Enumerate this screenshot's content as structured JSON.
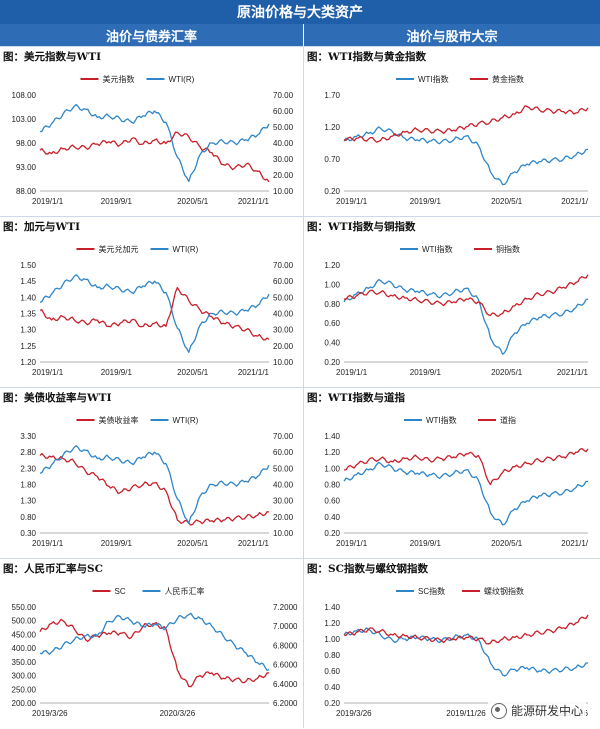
{
  "header": {
    "title": "原油价格与大类资产",
    "left_section": "油价与债券汇率",
    "right_section": "油价与股市大宗"
  },
  "watermark": "能源研发中心",
  "colors": {
    "red": "#c8202a",
    "blue": "#2e86c8",
    "banner": "#1f5ea8"
  },
  "chart_data": [
    {
      "type": "line",
      "title": "图：美元指数与WTI",
      "x_ticks": [
        "2019/1/1",
        "2019/9/1",
        "2020/5/1",
        "2021/1/1"
      ],
      "left_axis": {
        "ticks": [
          "108.00",
          "103.00",
          "98.00",
          "93.00",
          "88.00"
        ],
        "ylim": [
          88,
          108
        ]
      },
      "right_axis": {
        "ticks": [
          "70.00",
          "60.00",
          "50.00",
          "40.00",
          "30.00",
          "20.00",
          "10.00"
        ],
        "ylim": [
          10,
          70
        ]
      },
      "series": [
        {
          "name": "美元指数",
          "axis": "left",
          "values": [
            96.5,
            95.8,
            96.8,
            97.2,
            97.0,
            97.8,
            98.3,
            97.6,
            98.9,
            97.8,
            98.6,
            97.9,
            100.2,
            99.3,
            97.1,
            96.0,
            93.5,
            92.8,
            93.6,
            92.1,
            89.9
          ]
        },
        {
          "name": "WTI(R)",
          "axis": "right",
          "values": [
            47,
            52,
            58,
            63,
            61,
            56,
            57,
            55,
            53,
            57,
            60,
            53,
            31,
            16,
            33,
            40,
            41,
            40,
            42,
            45,
            52
          ]
        }
      ]
    },
    {
      "type": "line",
      "title": "图：WTI指数与黄金指数",
      "x_ticks": [
        "2019/1/1",
        "2019/9/1",
        "2020/5/1",
        "2021/1/"
      ],
      "left_axis": {
        "ticks": [
          "1.70",
          "1.20",
          "0.70",
          "0.20"
        ],
        "ylim": [
          0.2,
          1.7
        ]
      },
      "series": [
        {
          "name": "WTI指数",
          "axis": "left",
          "values": [
            0.98,
            1.05,
            1.1,
            1.18,
            1.12,
            1.02,
            1.0,
            0.98,
            0.97,
            1.0,
            1.06,
            0.92,
            0.5,
            0.3,
            0.5,
            0.62,
            0.66,
            0.68,
            0.7,
            0.76,
            0.85
          ]
        },
        {
          "name": "黄金指数",
          "axis": "left",
          "values": [
            1.0,
            1.02,
            1.01,
            0.99,
            1.06,
            1.12,
            1.16,
            1.14,
            1.13,
            1.15,
            1.2,
            1.25,
            1.28,
            1.35,
            1.4,
            1.52,
            1.47,
            1.45,
            1.44,
            1.42,
            1.5
          ]
        }
      ]
    },
    {
      "type": "line",
      "title": "图：加元与WTI",
      "x_ticks": [
        "2019/1/1",
        "2019/9/1",
        "2020/5/1",
        "2021/1/1"
      ],
      "left_axis": {
        "ticks": [
          "1.50",
          "1.45",
          "1.40",
          "1.35",
          "1.30",
          "1.25",
          "1.20"
        ],
        "ylim": [
          1.2,
          1.5
        ]
      },
      "right_axis": {
        "ticks": [
          "70.00",
          "60.00",
          "50.00",
          "40.00",
          "30.00",
          "20.00",
          "10.00"
        ],
        "ylim": [
          10,
          70
        ]
      },
      "series": [
        {
          "name": "美元兑加元",
          "axis": "left",
          "values": [
            1.36,
            1.33,
            1.34,
            1.33,
            1.32,
            1.33,
            1.31,
            1.32,
            1.33,
            1.31,
            1.32,
            1.31,
            1.43,
            1.39,
            1.36,
            1.34,
            1.32,
            1.31,
            1.3,
            1.28,
            1.27
          ]
        },
        {
          "name": "WTI(R)",
          "axis": "right",
          "values": [
            47,
            52,
            58,
            63,
            61,
            56,
            57,
            55,
            53,
            57,
            60,
            53,
            31,
            16,
            33,
            40,
            41,
            40,
            42,
            45,
            52
          ]
        }
      ]
    },
    {
      "type": "line",
      "title": "图：WTI指数与铜指数",
      "x_ticks": [
        "2019/1/1",
        "2019/9/1",
        "2020/5/1",
        "2021/1/1"
      ],
      "left_axis": {
        "ticks": [
          "1.20",
          "1.00",
          "0.80",
          "0.60",
          "0.40",
          "0.20"
        ],
        "ylim": [
          0.2,
          1.2
        ]
      },
      "series": [
        {
          "name": "WTI指数",
          "axis": "left",
          "values": [
            0.82,
            0.9,
            0.96,
            1.04,
            1.0,
            0.94,
            0.93,
            0.9,
            0.88,
            0.92,
            0.96,
            0.85,
            0.45,
            0.28,
            0.5,
            0.6,
            0.66,
            0.68,
            0.7,
            0.76,
            0.85
          ]
        },
        {
          "name": "铜指数",
          "axis": "left",
          "values": [
            0.85,
            0.88,
            0.92,
            0.92,
            0.88,
            0.86,
            0.84,
            0.82,
            0.8,
            0.82,
            0.85,
            0.82,
            0.68,
            0.7,
            0.78,
            0.85,
            0.9,
            0.92,
            0.97,
            1.02,
            1.1
          ]
        }
      ]
    },
    {
      "type": "line",
      "title": "图：美债收益率与WTI",
      "x_ticks": [
        "2019/1/1",
        "2019/9/1",
        "2020/5/1",
        "2021/1/1"
      ],
      "left_axis": {
        "ticks": [
          "3.30",
          "2.80",
          "2.30",
          "1.80",
          "1.30",
          "0.80",
          "0.30"
        ],
        "ylim": [
          0.3,
          3.3
        ]
      },
      "right_axis": {
        "ticks": [
          "70.00",
          "60.00",
          "50.00",
          "40.00",
          "30.00",
          "20.00",
          "10.00"
        ],
        "ylim": [
          10,
          70
        ]
      },
      "series": [
        {
          "name": "美债收益率",
          "axis": "left",
          "values": [
            2.7,
            2.65,
            2.6,
            2.5,
            2.2,
            2.05,
            1.75,
            1.55,
            1.7,
            1.8,
            1.85,
            1.6,
            0.7,
            0.6,
            0.65,
            0.68,
            0.7,
            0.75,
            0.8,
            0.85,
            0.95
          ]
        },
        {
          "name": "WTI(R)",
          "axis": "right",
          "values": [
            47,
            52,
            58,
            63,
            61,
            56,
            57,
            55,
            53,
            57,
            60,
            53,
            31,
            16,
            33,
            40,
            41,
            40,
            42,
            45,
            52
          ]
        }
      ]
    },
    {
      "type": "line",
      "title": "图：WTI指数与道指",
      "x_ticks": [
        "2019/1/1",
        "2019/9/1",
        "2020/5/1",
        "2021/1/"
      ],
      "left_axis": {
        "ticks": [
          "1.40",
          "1.20",
          "1.00",
          "0.80",
          "0.60",
          "0.40",
          "0.20"
        ],
        "ylim": [
          0.2,
          1.4
        ]
      },
      "series": [
        {
          "name": "WTI指数",
          "axis": "left",
          "values": [
            0.84,
            0.92,
            0.98,
            1.06,
            1.0,
            0.95,
            0.94,
            0.92,
            0.9,
            0.94,
            0.98,
            0.86,
            0.45,
            0.3,
            0.5,
            0.6,
            0.66,
            0.68,
            0.7,
            0.76,
            0.84
          ]
        },
        {
          "name": "道指",
          "axis": "left",
          "values": [
            0.98,
            1.04,
            1.1,
            1.12,
            1.08,
            1.12,
            1.14,
            1.1,
            1.12,
            1.14,
            1.18,
            1.16,
            0.8,
            0.95,
            1.02,
            1.06,
            1.1,
            1.12,
            1.14,
            1.2,
            1.24
          ]
        }
      ]
    },
    {
      "type": "line",
      "title": "图：人民币汇率与SC",
      "x_ticks": [
        "2019/3/26",
        "2020/3/26"
      ],
      "left_axis": {
        "ticks": [
          "550.00",
          "500.00",
          "450.00",
          "400.00",
          "350.00",
          "300.00",
          "250.00",
          "200.00"
        ],
        "ylim": [
          200,
          550
        ]
      },
      "right_axis": {
        "ticks": [
          "7.2000",
          "7.0000",
          "6.8000",
          "6.6000",
          "6.4000",
          "6.2000"
        ],
        "ylim": [
          6.2,
          7.2
        ]
      },
      "series": [
        {
          "name": "SC",
          "axis": "left",
          "values": [
            460,
            490,
            500,
            470,
            430,
            445,
            455,
            455,
            440,
            480,
            490,
            470,
            320,
            260,
            300,
            310,
            290,
            285,
            280,
            290,
            310
          ]
        },
        {
          "name": "人民币汇率",
          "axis": "right",
          "values": [
            6.72,
            6.73,
            6.8,
            6.86,
            6.9,
            6.9,
            7.05,
            7.1,
            7.05,
            7.0,
            7.02,
            6.98,
            7.08,
            7.12,
            7.08,
            7.0,
            6.9,
            6.8,
            6.72,
            6.62,
            6.55
          ]
        }
      ]
    },
    {
      "type": "line",
      "title": "图：SC指数与螺纹钢指数",
      "x_ticks": [
        "2019/3/26",
        "2019/11/26",
        "2020/7/26"
      ],
      "left_axis": {
        "ticks": [
          "1.40",
          "1.20",
          "1.00",
          "0.80",
          "0.60",
          "0.40",
          "0.20"
        ],
        "ylim": [
          0.2,
          1.4
        ]
      },
      "series": [
        {
          "name": "SC指数",
          "axis": "left",
          "values": [
            1.05,
            1.1,
            1.12,
            1.05,
            0.98,
            1.0,
            1.02,
            1.0,
            0.98,
            1.02,
            1.05,
            1.0,
            0.7,
            0.55,
            0.62,
            0.64,
            0.6,
            0.6,
            0.62,
            0.64,
            0.7
          ]
        },
        {
          "name": "螺纹钢指数",
          "axis": "left",
          "values": [
            1.05,
            1.08,
            1.12,
            1.1,
            1.05,
            1.04,
            1.02,
            1.0,
            0.98,
            1.0,
            1.02,
            1.0,
            0.95,
            1.0,
            1.02,
            1.05,
            1.08,
            1.1,
            1.14,
            1.2,
            1.3
          ]
        }
      ]
    }
  ]
}
